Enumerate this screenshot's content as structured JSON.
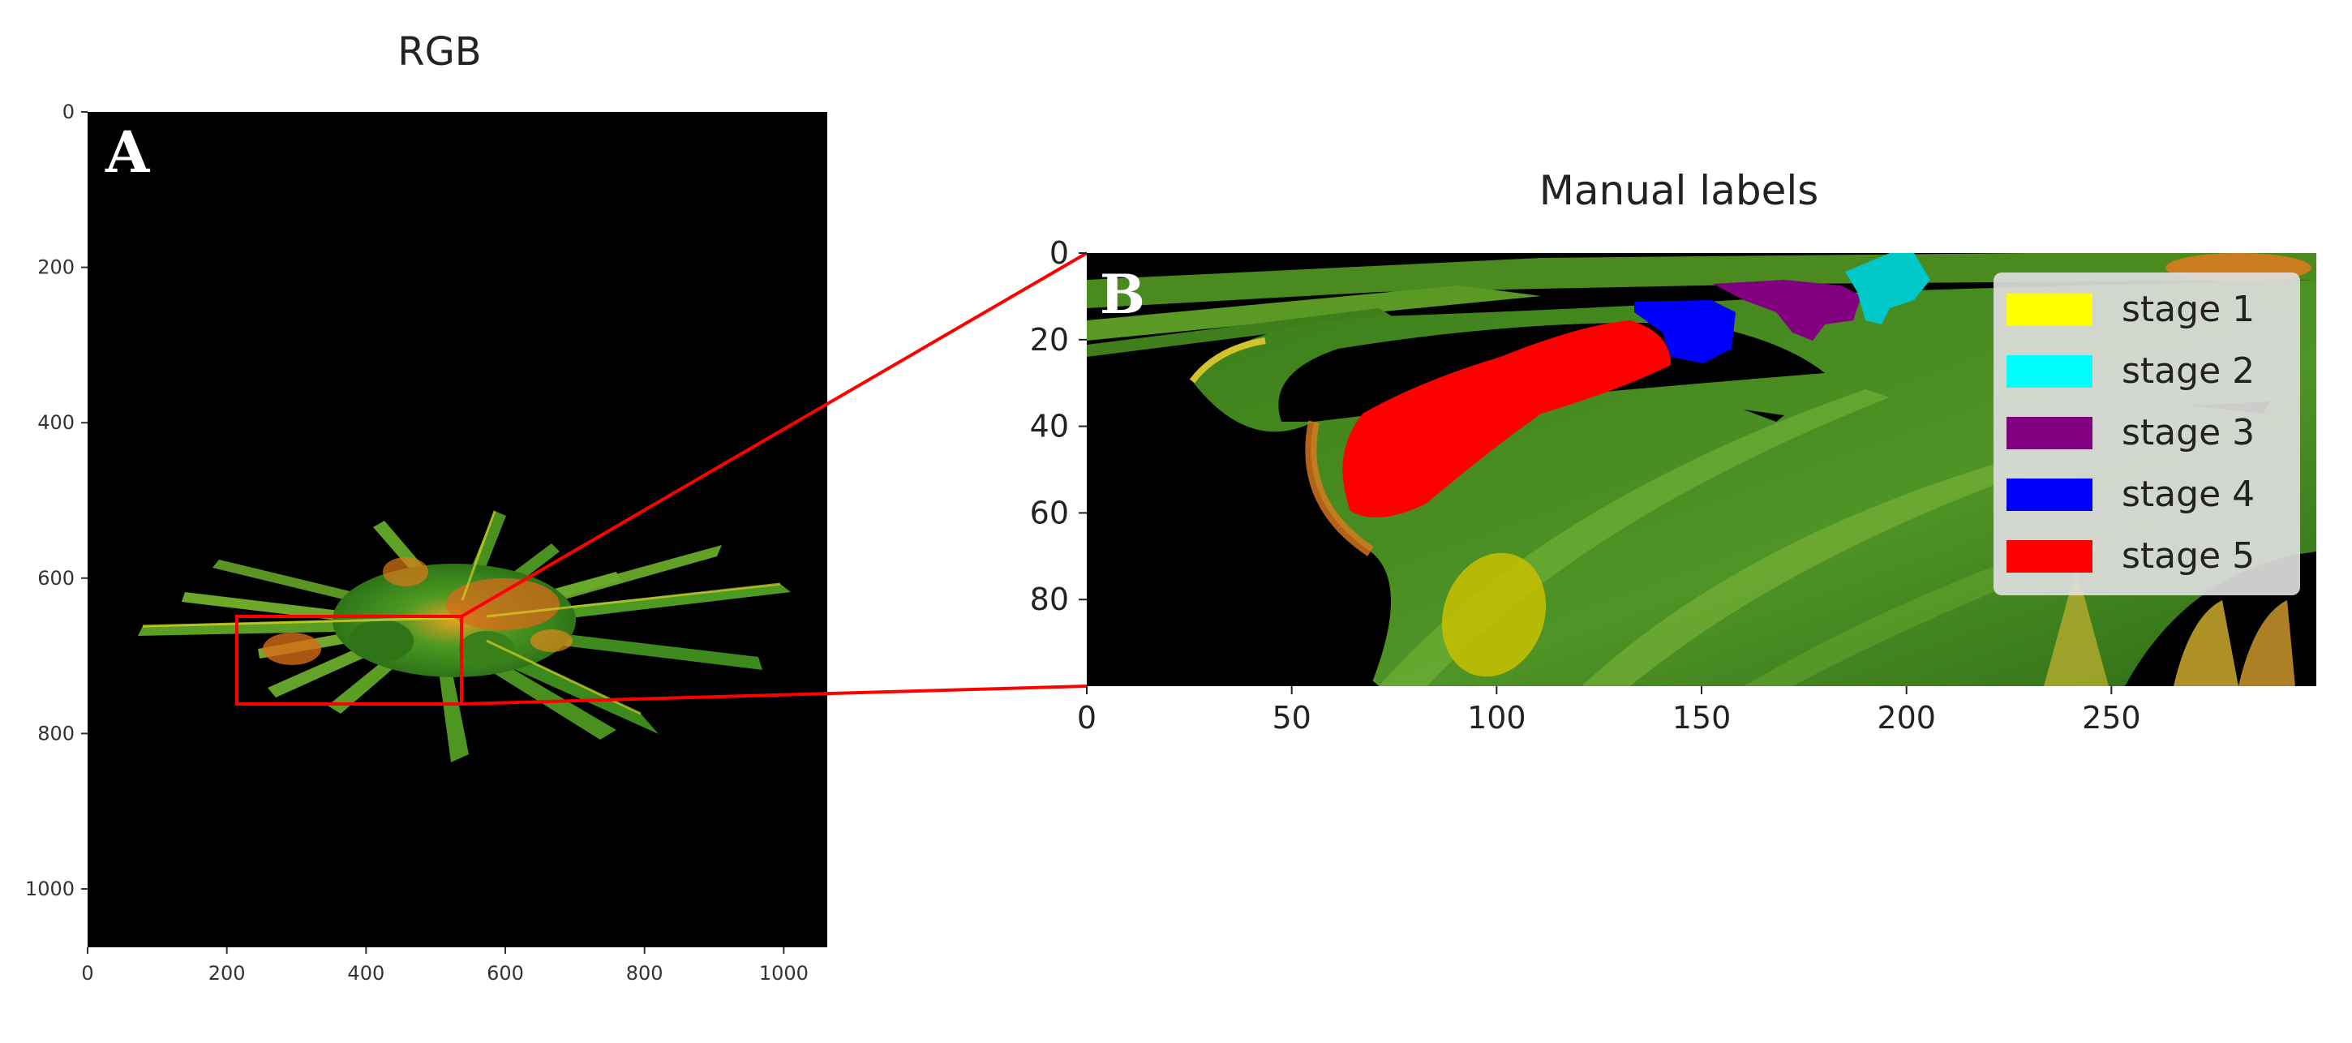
{
  "panel_a": {
    "letter": "A",
    "title": "RGB",
    "x_ticks": [
      "0",
      "200",
      "400",
      "600",
      "800",
      "1000"
    ],
    "y_ticks": [
      "0",
      "200",
      "400",
      "600",
      "800",
      "1000"
    ]
  },
  "panel_b": {
    "letter": "B",
    "title": "Manual labels",
    "x_ticks": [
      "0",
      "50",
      "100",
      "150",
      "200",
      "250"
    ],
    "y_ticks": [
      "0",
      "20",
      "40",
      "60",
      "80"
    ],
    "legend": [
      {
        "label": "stage 1",
        "color": "#ffff00"
      },
      {
        "label": "stage 2",
        "color": "#00ffff"
      },
      {
        "label": "stage 3",
        "color": "#800080"
      },
      {
        "label": "stage 4",
        "color": "#0000ff"
      },
      {
        "label": "stage 5",
        "color": "#ff0000"
      }
    ]
  },
  "colors": {
    "background": "#000000",
    "plant_green": "#3a8a1e",
    "plant_yellow": "#c8c828",
    "plant_orange": "#e06a1a",
    "zoom_box": "#ff0000"
  }
}
